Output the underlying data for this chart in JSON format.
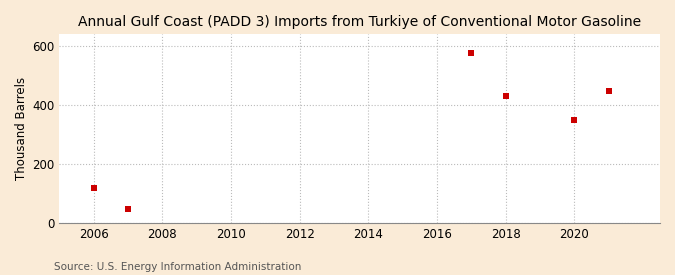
{
  "title": "Annual Gulf Coast (PADD 3) Imports from Turkiye of Conventional Motor Gasoline",
  "ylabel": "Thousand Barrels",
  "source": "Source: U.S. Energy Information Administration",
  "background_color": "#faebd7",
  "plot_background_color": "#ffffff",
  "marker_color": "#cc0000",
  "marker_size": 4,
  "data_points": [
    {
      "year": 2006,
      "value": 120
    },
    {
      "year": 2007,
      "value": 46
    },
    {
      "year": 2017,
      "value": 578
    },
    {
      "year": 2018,
      "value": 430
    },
    {
      "year": 2020,
      "value": 350
    },
    {
      "year": 2021,
      "value": 449
    }
  ],
  "xlim": [
    2005.0,
    2022.5
  ],
  "ylim": [
    0,
    640
  ],
  "yticks": [
    0,
    200,
    400,
    600
  ],
  "xticks": [
    2006,
    2008,
    2010,
    2012,
    2014,
    2016,
    2018,
    2020
  ],
  "grid_color": "#bbbbbb",
  "grid_linestyle": ":",
  "title_fontsize": 10,
  "axis_fontsize": 8.5,
  "source_fontsize": 7.5
}
